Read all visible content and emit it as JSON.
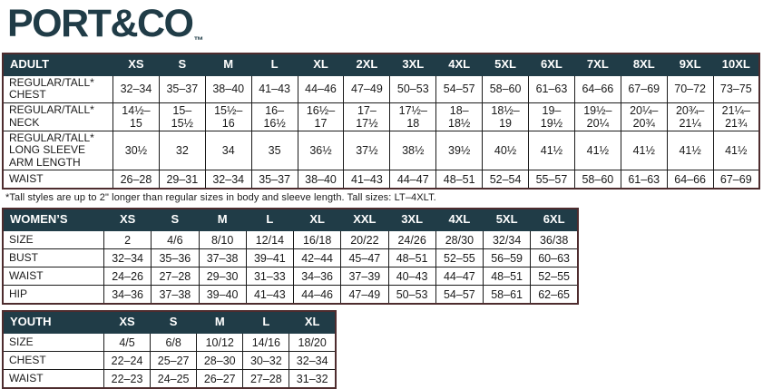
{
  "logo": {
    "text": "PORT&CO",
    "tm": "™"
  },
  "colors": {
    "brand_teal": "#203c47",
    "header_text": "#ffffff",
    "outer_border": "#4e2c2e",
    "grid_line": "#1b1b1b"
  },
  "adult": {
    "title": "ADULT",
    "sizes": [
      "XS",
      "S",
      "M",
      "L",
      "XL",
      "2XL",
      "3XL",
      "4XL",
      "5XL",
      "6XL",
      "7XL",
      "8XL",
      "9XL",
      "10XL"
    ],
    "rows": [
      {
        "label": "REGULAR/TALL* CHEST",
        "values": [
          "32–34",
          "35–37",
          "38–40",
          "41–43",
          "44–46",
          "47–49",
          "50–53",
          "54–57",
          "58–60",
          "61–63",
          "64–66",
          "67–69",
          "70–72",
          "73–75"
        ]
      },
      {
        "label": "REGULAR/TALL* NECK",
        "values": [
          "14½–15",
          "15–15½",
          "15½–16",
          "16–16½",
          "16½–17",
          "17–17½",
          "17½–18",
          "18–18½",
          "18½–19",
          "19–19½",
          "19½– 20¼",
          "20¼– 20¾",
          "20¾– 21¼",
          "21¼– 21¾"
        ]
      },
      {
        "label": "REGULAR/TALL* LONG SLEEVE ARM LENGTH",
        "values": [
          "30½",
          "32",
          "34",
          "35",
          "36½",
          "37½",
          "38½",
          "39½",
          "40½",
          "41½",
          "41½",
          "41½",
          "41½",
          "41½"
        ]
      },
      {
        "label": "WAIST",
        "values": [
          "26–28",
          "29–31",
          "32–34",
          "35–37",
          "38–40",
          "41–43",
          "44–47",
          "48–51",
          "52–54",
          "55–57",
          "58–60",
          "61–63",
          "64–66",
          "67–69"
        ]
      }
    ],
    "footnote": "*Tall styles are up to 2\" longer than regular sizes in body and sleeve length. Tall sizes: LT–4XLT."
  },
  "womens": {
    "title": "WOMEN’S",
    "sizes": [
      "XS",
      "S",
      "M",
      "L",
      "XL",
      "XXL",
      "3XL",
      "4XL",
      "5XL",
      "6XL"
    ],
    "rows": [
      {
        "label": "SIZE",
        "values": [
          "2",
          "4/6",
          "8/10",
          "12/14",
          "16/18",
          "20/22",
          "24/26",
          "28/30",
          "32/34",
          "36/38"
        ]
      },
      {
        "label": "BUST",
        "values": [
          "32–34",
          "35–36",
          "37–38",
          "39–41",
          "42–44",
          "45–47",
          "48–51",
          "52–55",
          "56–59",
          "60–63"
        ]
      },
      {
        "label": "WAIST",
        "values": [
          "24–26",
          "27–28",
          "29–30",
          "31–33",
          "34–36",
          "37–39",
          "40–43",
          "44–47",
          "48–51",
          "52–55"
        ]
      },
      {
        "label": "HIP",
        "values": [
          "34–36",
          "37–38",
          "39–40",
          "41–43",
          "44–46",
          "47–49",
          "50–53",
          "54–57",
          "58–61",
          "62–65"
        ]
      }
    ]
  },
  "youth": {
    "title": "YOUTH",
    "sizes": [
      "XS",
      "S",
      "M",
      "L",
      "XL"
    ],
    "rows": [
      {
        "label": "SIZE",
        "values": [
          "4/5",
          "6/8",
          "10/12",
          "14/16",
          "18/20"
        ]
      },
      {
        "label": "CHEST",
        "values": [
          "22–24",
          "25–27",
          "28–30",
          "30–32",
          "32–34"
        ]
      },
      {
        "label": "WAIST",
        "values": [
          "22–23",
          "24–25",
          "26–27",
          "27–28",
          "31–32"
        ]
      }
    ]
  }
}
